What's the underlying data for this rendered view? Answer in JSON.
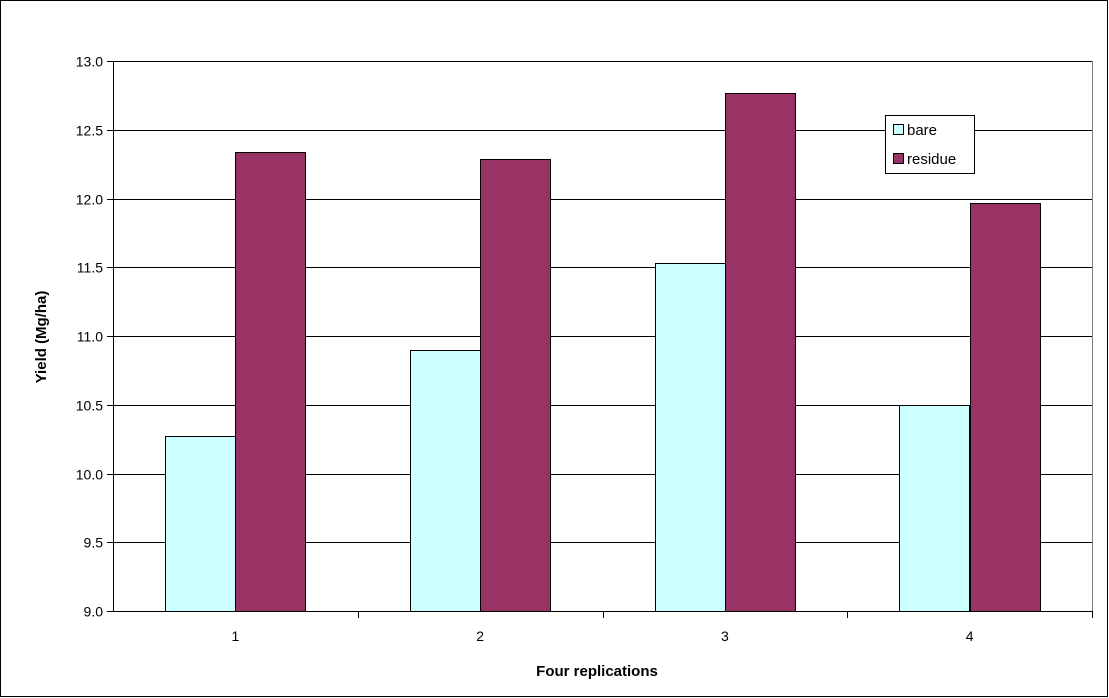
{
  "chart_data": {
    "type": "bar",
    "title": "",
    "xlabel": "Four replications",
    "ylabel": "Yield (Mg/ha)",
    "categories": [
      "1",
      "2",
      "3",
      "4"
    ],
    "series": [
      {
        "name": "bare",
        "values": [
          10.27,
          10.9,
          11.53,
          10.5
        ],
        "color": "#ccffff"
      },
      {
        "name": "residue",
        "values": [
          12.34,
          12.29,
          12.77,
          11.97
        ],
        "color": "#993366"
      }
    ],
    "ylim": [
      9.0,
      13.0
    ],
    "yticks": [
      "9.0",
      "9.5",
      "10.0",
      "10.5",
      "11.0",
      "11.5",
      "12.0",
      "12.5",
      "13.0"
    ],
    "ytick_values": [
      9.0,
      9.5,
      10.0,
      10.5,
      11.0,
      11.5,
      12.0,
      12.5,
      13.0
    ],
    "grid": true,
    "legend_position": "top-right",
    "plot_background": "#ffffff",
    "gridline_color": "#000000"
  }
}
